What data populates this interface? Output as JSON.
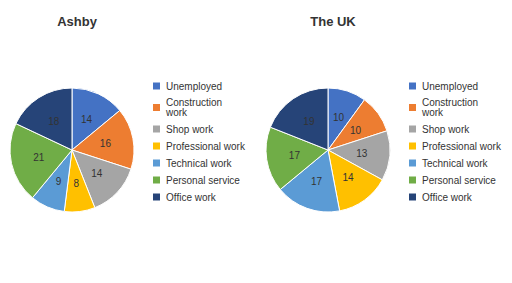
{
  "chart_data": [
    {
      "type": "pie",
      "title": "Ashby",
      "categories": [
        "Unemployed",
        "Construction\nwork",
        "Shop work",
        "Professional work",
        "Technical work",
        "Personal service",
        "Office work"
      ],
      "values": [
        14,
        16,
        14,
        8,
        9,
        21,
        18
      ],
      "colors": [
        "#4472C4",
        "#ED7D31",
        "#A5A5A5",
        "#FFC000",
        "#5B9BD5",
        "#70AD47",
        "#264478"
      ],
      "data_labels": true,
      "legend": "right"
    },
    {
      "type": "pie",
      "title": "The UK",
      "categories": [
        "Unemployed",
        "Construction\nwork",
        "Shop work",
        "Professional work",
        "Technical work",
        "Personal service",
        "Office work"
      ],
      "values": [
        10,
        10,
        13,
        14,
        17,
        17,
        19
      ],
      "colors": [
        "#4472C4",
        "#ED7D31",
        "#A5A5A5",
        "#FFC000",
        "#5B9BD5",
        "#70AD47",
        "#264478"
      ],
      "data_labels": true,
      "legend": "right"
    }
  ]
}
